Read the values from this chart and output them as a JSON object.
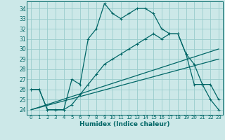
{
  "xlabel": "Humidex (Indice chaleur)",
  "bg_color": "#cce8e8",
  "line_color": "#006666",
  "grid_color": "#99cccc",
  "xlim": [
    -0.5,
    23.5
  ],
  "ylim": [
    23.5,
    34.7
  ],
  "yticks": [
    24,
    25,
    26,
    27,
    28,
    29,
    30,
    31,
    32,
    33,
    34
  ],
  "xticks": [
    0,
    1,
    2,
    3,
    4,
    5,
    6,
    7,
    8,
    9,
    10,
    11,
    12,
    13,
    14,
    15,
    16,
    17,
    18,
    19,
    20,
    21,
    22,
    23
  ],
  "line1_x": [
    0,
    1,
    2,
    3,
    4,
    5,
    6,
    7,
    8,
    9,
    10,
    11,
    12,
    13,
    14,
    15,
    16,
    17,
    18,
    19,
    20,
    21,
    22,
    23
  ],
  "line1_y": [
    26,
    26,
    24,
    24,
    24,
    27,
    26.5,
    31,
    32,
    34.5,
    33.5,
    33,
    33.5,
    34,
    34,
    33.5,
    32,
    31.5,
    31.5,
    29.5,
    28.5,
    26.5,
    26.5,
    25
  ],
  "line2_x": [
    0,
    1,
    2,
    3,
    4,
    5,
    6,
    7,
    8,
    9,
    10,
    11,
    12,
    13,
    14,
    15,
    16,
    17,
    18,
    19,
    20,
    21,
    22,
    23
  ],
  "line2_y": [
    26,
    26,
    24,
    24,
    24,
    24.5,
    25.5,
    26.5,
    27.5,
    28.5,
    29,
    29.5,
    30,
    30.5,
    31,
    31.5,
    31,
    31.5,
    31.5,
    29.5,
    26.5,
    26.5,
    25,
    24
  ],
  "line3_x": [
    0,
    23
  ],
  "line3_y": [
    24.0,
    30.0
  ],
  "line4_x": [
    0,
    23
  ],
  "line4_y": [
    24.0,
    29.0
  ]
}
